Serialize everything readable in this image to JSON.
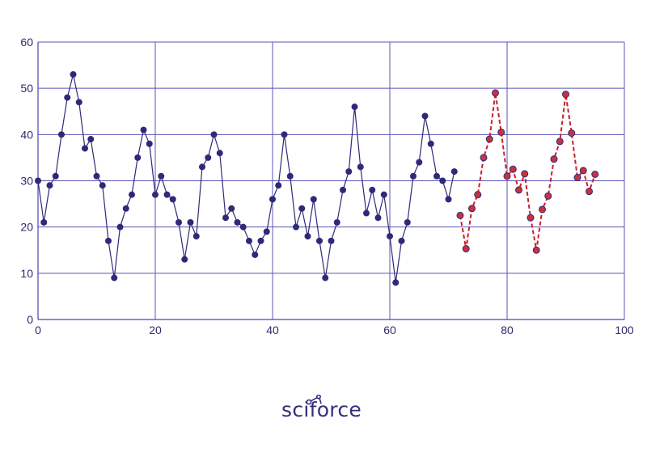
{
  "colors": {
    "axis": "#4a46a8",
    "grid": "#5a55b8",
    "actual": "#2e2a78",
    "forecast_line": "#cc1f2b",
    "forecast_marker": "#c8323d",
    "tick_text": "#2e2a6b"
  },
  "logo": {
    "text": "sciforce",
    "icon": "network-node-icon"
  },
  "chart_data": {
    "type": "line",
    "xlim": [
      0,
      100
    ],
    "ylim": [
      0,
      60
    ],
    "xticks": [
      0,
      20,
      40,
      60,
      80,
      100
    ],
    "yticks": [
      0,
      10,
      20,
      30,
      40,
      50,
      60
    ],
    "grid": true,
    "series": [
      {
        "style": "solid",
        "x": [
          0,
          1,
          2,
          3,
          4,
          5,
          6,
          7,
          8,
          9,
          10,
          11,
          12,
          13,
          14,
          15,
          16,
          17,
          18,
          19,
          20,
          21,
          22,
          23,
          24,
          25,
          26,
          27,
          28,
          29,
          30,
          31,
          32,
          33,
          34,
          35,
          36,
          37,
          38,
          39,
          40,
          41,
          42,
          43,
          44,
          45,
          46,
          47,
          48,
          49,
          50,
          51,
          52,
          53,
          54,
          55,
          56,
          57,
          58,
          59,
          60,
          61,
          62,
          63,
          64,
          65,
          66,
          67,
          68,
          69,
          70,
          71
        ],
        "y": [
          30,
          21,
          29,
          31,
          40,
          48,
          53,
          47,
          37,
          39,
          31,
          29,
          17,
          9,
          20,
          24,
          27,
          35,
          41,
          38,
          27,
          31,
          27,
          26,
          21,
          13,
          21,
          18,
          33,
          35,
          40,
          36,
          22,
          24,
          21,
          20,
          17,
          14,
          17,
          19,
          26,
          29,
          40,
          31,
          20,
          24,
          18,
          26,
          17,
          9,
          17,
          21,
          28,
          32,
          46,
          33,
          23,
          28,
          22,
          27,
          18,
          8,
          17,
          21,
          31,
          34,
          44,
          38,
          31,
          30,
          26,
          32
        ]
      },
      {
        "style": "dashed",
        "x": [
          72,
          73,
          74,
          75,
          76,
          77,
          78,
          79,
          80,
          81,
          82,
          83,
          84,
          85,
          86,
          87,
          88,
          89,
          90,
          91,
          92,
          93,
          94,
          95
        ],
        "y": [
          22.5,
          15.3,
          24,
          27,
          35,
          39,
          49,
          40.5,
          31,
          32.5,
          28,
          31.5,
          22,
          15,
          23.8,
          26.7,
          34.7,
          38.5,
          48.7,
          40.3,
          30.7,
          32.2,
          27.7,
          31.4
        ]
      }
    ]
  }
}
